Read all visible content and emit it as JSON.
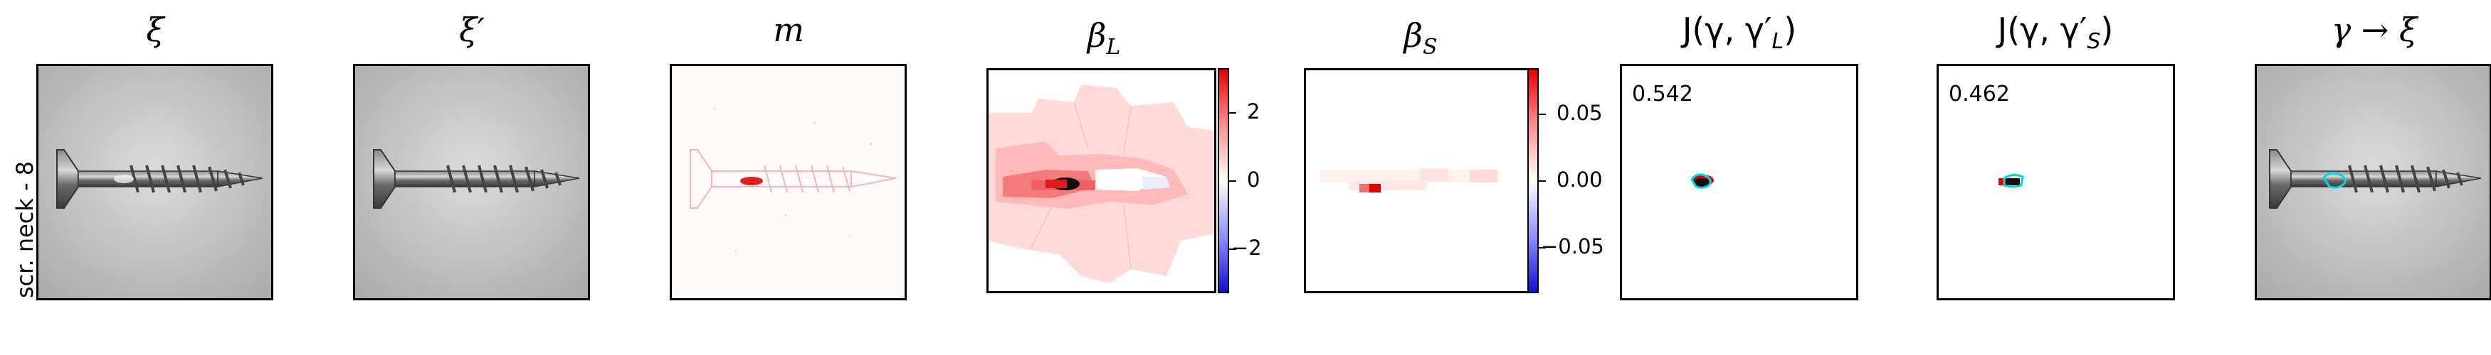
{
  "row_label": "scr. neck - 8",
  "titles": {
    "xi": "ξ",
    "xi_prime": "ξ′",
    "m": "m",
    "beta_L_main": "β",
    "beta_L_sub": "L",
    "beta_S_main": "β",
    "beta_S_sub": "S",
    "jl_main": "J(γ, γ′",
    "jl_sub": "L",
    "jl_close": ")",
    "js_main": "J(γ, γ′",
    "js_sub": "S",
    "js_close": ")",
    "overlay": "γ → ξ"
  },
  "colorbars": {
    "beta_L": {
      "ticks": [
        "2",
        "0",
        "−2"
      ]
    },
    "beta_S": {
      "ticks": [
        "0.05",
        "0.00",
        "−0.05"
      ]
    }
  },
  "scores": {
    "jl": "0.542",
    "js": "0.462"
  },
  "colors": {
    "red": "#e00000",
    "blue": "#1010d0",
    "cyan": "#00d8e8"
  }
}
